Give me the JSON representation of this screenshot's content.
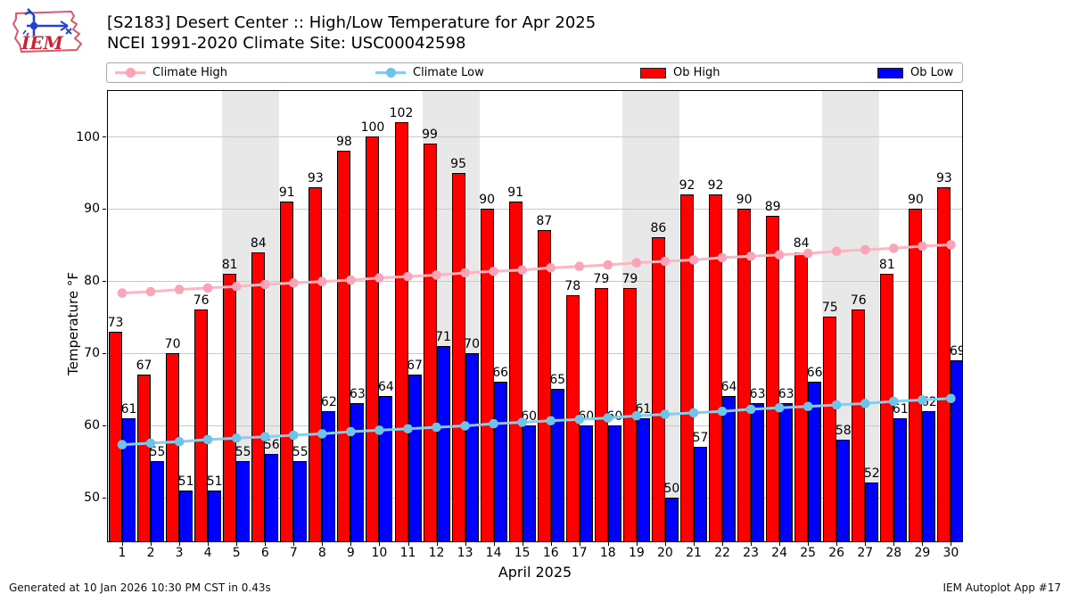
{
  "header": {
    "title_line1": "[S2183] Desert Center :: High/Low Temperature for Apr 2025",
    "title_line2": "NCEI 1991-2020 Climate Site: USC00042598",
    "logo_text": "IEM"
  },
  "legend": {
    "items": [
      {
        "label": "Climate High",
        "type": "line",
        "color": "#ffb6c1",
        "marker_color": "#f9a4b8"
      },
      {
        "label": "Climate Low",
        "type": "line",
        "color": "#87ceeb",
        "marker_color": "#6fc3e8"
      },
      {
        "label": "Ob High",
        "type": "patch",
        "color": "#ff0000"
      },
      {
        "label": "Ob Low",
        "type": "patch",
        "color": "#0000ff"
      }
    ]
  },
  "chart_data": {
    "type": "bar",
    "title": "[S2183] Desert Center :: High/Low Temperature for Apr 2025",
    "subtitle": "NCEI 1991-2020 Climate Site: USC00042598",
    "xlabel": "April 2025",
    "ylabel": "Temperature °F",
    "x": [
      1,
      2,
      3,
      4,
      5,
      6,
      7,
      8,
      9,
      10,
      11,
      12,
      13,
      14,
      15,
      16,
      17,
      18,
      19,
      20,
      21,
      22,
      23,
      24,
      25,
      26,
      27,
      28,
      29,
      30
    ],
    "series": [
      {
        "name": "Ob High",
        "type": "bar",
        "color": "#ff0000",
        "values": [
          73,
          67,
          70,
          76,
          81,
          84,
          91,
          93,
          98,
          100,
          102,
          99,
          95,
          90,
          91,
          87,
          78,
          79,
          79,
          86,
          92,
          92,
          90,
          89,
          84,
          75,
          76,
          81,
          90,
          93
        ]
      },
      {
        "name": "Ob Low",
        "type": "bar",
        "color": "#0000ff",
        "values": [
          61,
          55,
          51,
          51,
          55,
          56,
          55,
          62,
          63,
          64,
          67,
          71,
          70,
          66,
          60,
          65,
          60,
          60,
          61,
          50,
          57,
          64,
          63,
          63,
          66,
          58,
          52,
          61,
          62,
          69
        ]
      },
      {
        "name": "Climate High",
        "type": "line",
        "color": "#ffb6c1",
        "marker_color": "#f9a4b8",
        "values": [
          78.3,
          78.5,
          78.8,
          79.0,
          79.2,
          79.5,
          79.7,
          79.9,
          80.1,
          80.4,
          80.6,
          80.8,
          81.1,
          81.3,
          81.5,
          81.8,
          82.0,
          82.2,
          82.5,
          82.7,
          82.9,
          83.2,
          83.4,
          83.6,
          83.8,
          84.1,
          84.3,
          84.5,
          84.8,
          85.0
        ]
      },
      {
        "name": "Climate Low",
        "type": "line",
        "color": "#87ceeb",
        "marker_color": "#6fc3e8",
        "values": [
          57.3,
          57.5,
          57.7,
          58.0,
          58.2,
          58.4,
          58.6,
          58.8,
          59.1,
          59.3,
          59.5,
          59.7,
          59.9,
          60.2,
          60.4,
          60.6,
          60.8,
          61.0,
          61.3,
          61.5,
          61.7,
          61.9,
          62.2,
          62.4,
          62.6,
          62.8,
          63.0,
          63.3,
          63.5,
          63.7
        ]
      }
    ],
    "ylim": [
      43.9,
      106.3
    ],
    "yticks": [
      50,
      60,
      70,
      80,
      90,
      100
    ],
    "grid": "horizontal",
    "gridline_color": "#c9c9c9",
    "weekend_bands": [
      [
        5,
        6
      ],
      [
        12,
        13
      ],
      [
        19,
        20
      ],
      [
        26,
        27
      ]
    ],
    "weekend_band_color": "#e8e8e8",
    "legend_position": "top"
  },
  "footer": {
    "left": "Generated at 10 Jan 2026 10:30 PM CST in 0.43s",
    "right": "IEM Autoplot App #17"
  }
}
